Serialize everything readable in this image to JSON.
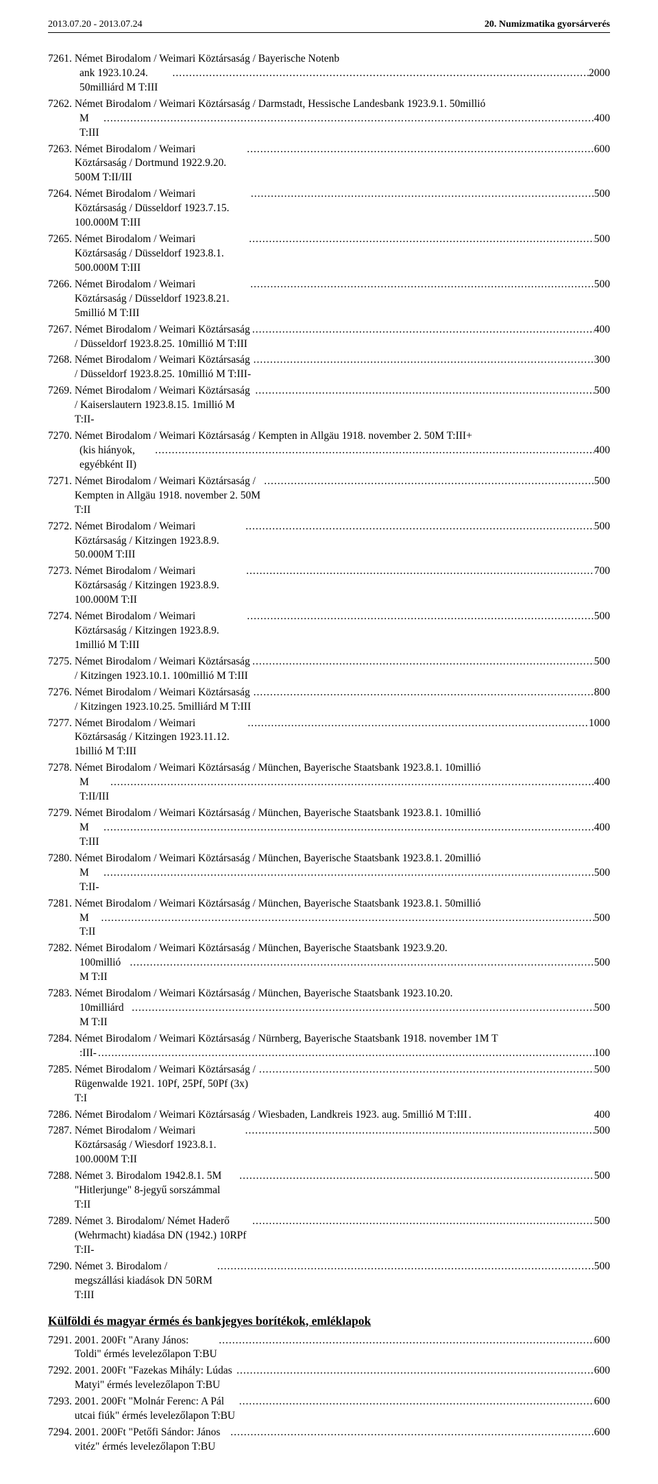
{
  "header": {
    "left": "2013.07.20 - 2013.07.24",
    "right": "20. Numizmatika gyorsárverés"
  },
  "dots": "...........................................................................................................................................................................................................",
  "entries": [
    {
      "lot": "7261.",
      "desc": "Német Birodalom / Weimari Köztársaság / Bayerische Notenbank 1923.10.24. 50milliárd M T:III",
      "price": "2000",
      "wrap": [
        57
      ]
    },
    {
      "lot": "7262.",
      "desc": "Német Birodalom / Weimari Köztársaság / Darmstadt, Hessische Landesbank 1923.9.1. 50millió M T:III",
      "price": "400",
      "wrap": [
        91
      ]
    },
    {
      "lot": "7263.",
      "desc": "Német Birodalom / Weimari Köztársaság / Dortmund 1922.9.20. 500M T:II/III",
      "price": "600"
    },
    {
      "lot": "7264.",
      "desc": "Német Birodalom / Weimari Köztársaság / Düsseldorf 1923.7.15. 100.000M T:III",
      "price": "500"
    },
    {
      "lot": "7265.",
      "desc": "Német Birodalom / Weimari Köztársaság / Düsseldorf 1923.8.1. 500.000M T:III",
      "price": "500"
    },
    {
      "lot": "7266.",
      "desc": "Német Birodalom / Weimari Köztársaság / Düsseldorf 1923.8.21. 5millió M T:III",
      "price": "500"
    },
    {
      "lot": "7267.",
      "desc": "Német Birodalom / Weimari Köztársaság / Düsseldorf 1923.8.25. 10millió M T:III",
      "price": "400"
    },
    {
      "lot": "7268.",
      "desc": "Német Birodalom / Weimari Köztársaság / Düsseldorf 1923.8.25. 10millió M T:III-",
      "price": "300"
    },
    {
      "lot": "7269.",
      "desc": "Német Birodalom / Weimari Köztársaság / Kaiserslautern 1923.8.15. 1millió M T:II-",
      "price": "500"
    },
    {
      "lot": "7270.",
      "desc": "Német Birodalom / Weimari Köztársaság / Kempten in Allgäu 1918. november 2. 50M T:III+ (kis hiányok, egyébként II)",
      "price": "400",
      "wrap": [
        87
      ]
    },
    {
      "lot": "7271.",
      "desc": "Német Birodalom / Weimari Köztársaság / Kempten in Allgäu 1918. november 2. 50M T:II",
      "price": "500"
    },
    {
      "lot": "7272.",
      "desc": "Német Birodalom / Weimari Köztársaság / Kitzingen 1923.8.9. 50.000M T:III",
      "price": "500"
    },
    {
      "lot": "7273.",
      "desc": "Német Birodalom / Weimari Köztársaság / Kitzingen 1923.8.9. 100.000M T:II",
      "price": "700"
    },
    {
      "lot": "7274.",
      "desc": "Német Birodalom / Weimari Köztársaság / Kitzingen 1923.8.9. 1millió M T:III",
      "price": "500"
    },
    {
      "lot": "7275.",
      "desc": "Német Birodalom / Weimari Köztársaság / Kitzingen 1923.10.1. 100millió M T:III",
      "price": "500"
    },
    {
      "lot": "7276.",
      "desc": "Német Birodalom / Weimari Köztársaság / Kitzingen 1923.10.25. 5milliárd M T:III",
      "price": "800"
    },
    {
      "lot": "7277.",
      "desc": "Német Birodalom / Weimari Köztársaság / Kitzingen 1923.11.12. 1billió M T:III",
      "price": "1000"
    },
    {
      "lot": "7278.",
      "desc": "Német Birodalom / Weimari Köztársaság / München, Bayerische Staatsbank 1923.8.1. 10millió M T:II/III",
      "price": "400",
      "wrap": [
        90
      ]
    },
    {
      "lot": "7279.",
      "desc": "Német Birodalom / Weimari Köztársaság / München, Bayerische Staatsbank 1923.8.1. 10millió M T:III",
      "price": "400",
      "wrap": [
        90
      ]
    },
    {
      "lot": "7280.",
      "desc": "Német Birodalom / Weimari Köztársaság / München, Bayerische Staatsbank 1923.8.1. 20millió M T:II-",
      "price": "500",
      "wrap": [
        90
      ]
    },
    {
      "lot": "7281.",
      "desc": "Német Birodalom / Weimari Köztársaság / München, Bayerische Staatsbank 1923.8.1. 50millió M T:II",
      "price": "500",
      "wrap": [
        90
      ]
    },
    {
      "lot": "7282.",
      "desc": "Német Birodalom / Weimari Köztársaság / München, Bayerische Staatsbank 1923.9.20. 100millió M T:II",
      "price": "500",
      "wrap": [
        82
      ]
    },
    {
      "lot": "7283.",
      "desc": "Német Birodalom / Weimari Köztársaság / München, Bayerische Staatsbank 1923.10.20. 10milliárd M T:II",
      "price": "500",
      "wrap": [
        83
      ]
    },
    {
      "lot": "7284.",
      "desc": "Német Birodalom / Weimari Köztársaság / Nürnberg, Bayerische Staatsbank 1918. november 1M T:III-",
      "price": "100",
      "wrap": [
        91
      ]
    },
    {
      "lot": "7285.",
      "desc": "Német Birodalom / Weimari Köztársaság / Rügenwalde 1921. 10Pf, 25Pf, 50Pf (3x) T:I",
      "price": "500"
    },
    {
      "lot": "7286.",
      "desc": "Német Birodalom / Weimari Köztársaság / Wiesbaden, Landkreis 1923. aug. 5millió M T:III",
      "price": "400",
      "nodots": true
    },
    {
      "lot": "7287.",
      "desc": "Német Birodalom / Weimari Köztársaság / Wiesdorf 1923.8.1. 100.000M T:II",
      "price": "500"
    },
    {
      "lot": "7288.",
      "desc": "Német 3. Birodalom 1942.8.1. 5M \"Hitlerjunge\" 8-jegyű sorszámmal T:II",
      "price": "500"
    },
    {
      "lot": "7289.",
      "desc": "Német 3. Birodalom/ Német Haderő (Wehrmacht) kiadása DN (1942.) 10RPf T:II-",
      "price": "500"
    },
    {
      "lot": "7290.",
      "desc": "Német 3. Birodalom / megszállási kiadások DN 50RM T:III",
      "price": "500"
    }
  ],
  "section_title": "Külföldi és magyar érmés és bankjegyes borítékok, emléklapok",
  "section_entries": [
    {
      "lot": "7291.",
      "desc": "2001. 200Ft \"Arany János: Toldi\" érmés levelezőlapon T:BU",
      "price": "600"
    },
    {
      "lot": "7292.",
      "desc": "2001. 200Ft \"Fazekas Mihály: Lúdas Matyi\" érmés levelezőlapon T:BU",
      "price": "600"
    },
    {
      "lot": "7293.",
      "desc": "2001. 200Ft \"Molnár Ferenc: A Pál utcai fiúk\" érmés levelezőlapon T:BU",
      "price": "600"
    },
    {
      "lot": "7294.",
      "desc": "2001. 200Ft \"Petőfi Sándor: János vitéz\" érmés levelezőlapon T:BU",
      "price": "600"
    }
  ]
}
